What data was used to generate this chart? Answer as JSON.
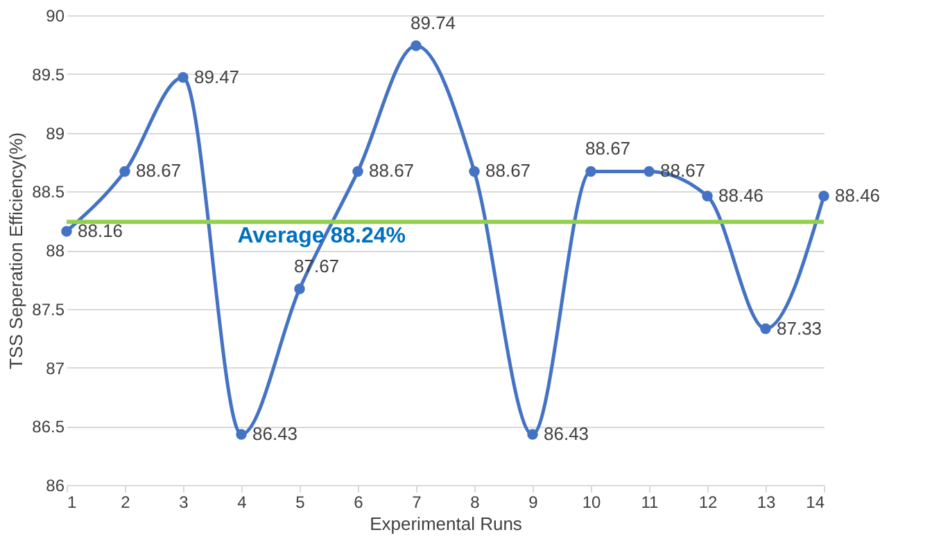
{
  "chart_data": {
    "type": "line",
    "xlabel": "Experimental Runs",
    "ylabel": "TSS Seperation Efficiency(%)",
    "x": [
      1,
      2,
      3,
      4,
      5,
      6,
      7,
      8,
      9,
      10,
      11,
      12,
      13,
      14
    ],
    "series": [
      {
        "color": "#4472c4",
        "values": [
          88.16,
          88.67,
          89.47,
          86.43,
          87.67,
          88.67,
          89.74,
          88.67,
          86.43,
          88.67,
          88.67,
          88.46,
          87.33,
          88.46
        ]
      }
    ],
    "xlim": [
      1,
      14
    ],
    "xticks": [
      1,
      2,
      3,
      4,
      5,
      6,
      7,
      8,
      9,
      10,
      11,
      12,
      13,
      14
    ],
    "ylim": [
      86,
      90
    ],
    "yticks": [
      86,
      86.5,
      87,
      87.5,
      88,
      88.5,
      89,
      89.5,
      90
    ],
    "ref_lines": [
      {
        "axis": "y",
        "value": 88.24,
        "label": "Average 88.24%",
        "color": "#92d050"
      }
    ],
    "grid": "y",
    "marker": "circle",
    "line_style": "solid",
    "data_labels": true
  }
}
